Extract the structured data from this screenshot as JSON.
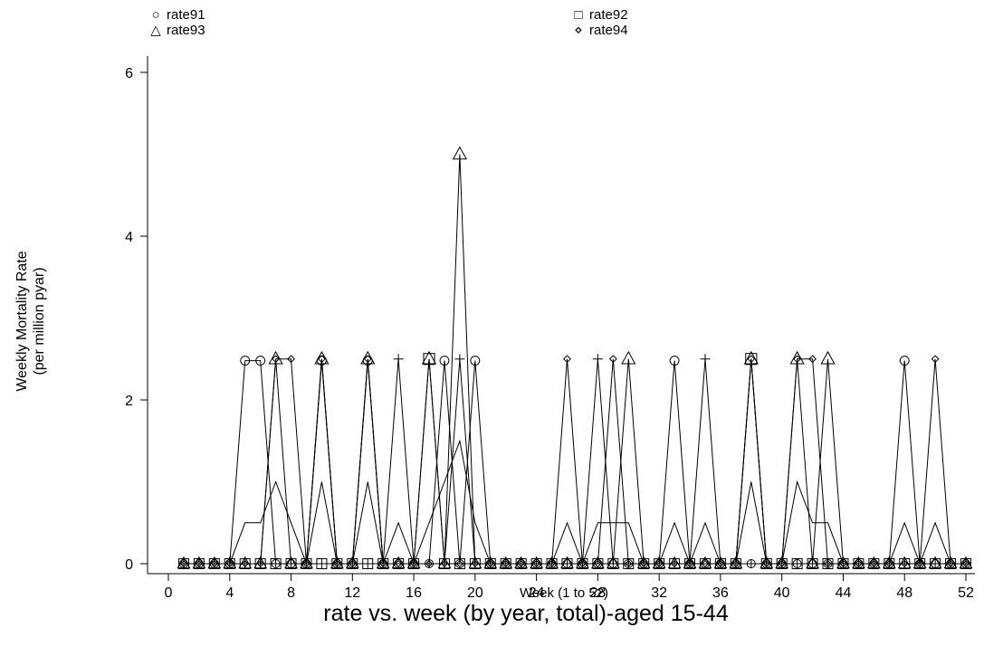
{
  "chart_data": {
    "type": "line",
    "title": "rate vs. week (by year, total)-aged 15-44",
    "xlabel": "Week (1 to 52)",
    "ylabel": [
      "Weekly Mortality Rate",
      "(per million pyar)"
    ],
    "xlim": [
      0,
      52
    ],
    "ylim": [
      0,
      6
    ],
    "x_ticks": [
      0,
      4,
      8,
      12,
      16,
      20,
      24,
      28,
      32,
      36,
      40,
      44,
      48,
      52
    ],
    "y_ticks": [
      0,
      2,
      4,
      6
    ],
    "legend_position": "top",
    "grid": false,
    "x": [
      1,
      2,
      3,
      4,
      5,
      6,
      7,
      8,
      9,
      10,
      11,
      12,
      13,
      14,
      15,
      16,
      17,
      18,
      19,
      20,
      21,
      22,
      23,
      24,
      25,
      26,
      27,
      28,
      29,
      30,
      31,
      32,
      33,
      34,
      35,
      36,
      37,
      38,
      39,
      40,
      41,
      42,
      43,
      44,
      45,
      46,
      47,
      48,
      49,
      50,
      51,
      52
    ],
    "series": [
      {
        "name": "rate91",
        "marker": "circle",
        "values": [
          0,
          0,
          0,
          0,
          2.48,
          2.48,
          0,
          0,
          0,
          2.48,
          0,
          0,
          2.48,
          0,
          0,
          0,
          0,
          2.48,
          0,
          2.48,
          0,
          0,
          0,
          0,
          0,
          0,
          0,
          0,
          0,
          0,
          0,
          0,
          2.48,
          0,
          0,
          0,
          0,
          0,
          0,
          0,
          0,
          0,
          0,
          0,
          0,
          0,
          0,
          2.48,
          0,
          0,
          0,
          0
        ]
      },
      {
        "name": "rate92",
        "marker": "square",
        "values": [
          0,
          0,
          0,
          0,
          0,
          0,
          0,
          0,
          0,
          0,
          0,
          0,
          0,
          0,
          0,
          0,
          2.5,
          0,
          0,
          0,
          0,
          0,
          0,
          0,
          0,
          0,
          0,
          0,
          0,
          0,
          0,
          0,
          0,
          0,
          0,
          0,
          0,
          2.5,
          0,
          0,
          0,
          0,
          0,
          0,
          0,
          0,
          0,
          0,
          0,
          0,
          0,
          0
        ]
      },
      {
        "name": "rate93",
        "marker": "triangle",
        "values": [
          0,
          0,
          0,
          0,
          0,
          0,
          2.5,
          0,
          0,
          2.5,
          0,
          0,
          2.5,
          0,
          0,
          0,
          2.5,
          0,
          5.0,
          0,
          0,
          0,
          0,
          0,
          0,
          0,
          0,
          0,
          0,
          2.5,
          0,
          0,
          0,
          0,
          0,
          0,
          0,
          2.5,
          0,
          0,
          2.5,
          0,
          2.5,
          0,
          0,
          0,
          0,
          0,
          0,
          0,
          0,
          0
        ]
      },
      {
        "name": "rate94",
        "marker": "diamond",
        "values": [
          0,
          0,
          0,
          0,
          0,
          0,
          2.5,
          2.5,
          0,
          2.5,
          0,
          0,
          2.5,
          0,
          0,
          0,
          0,
          0,
          0,
          0,
          0,
          0,
          0,
          0,
          0,
          2.5,
          0,
          0,
          2.5,
          0,
          0,
          0,
          0,
          0,
          0,
          0,
          0,
          2.5,
          0,
          0,
          2.5,
          2.5,
          0,
          0,
          0,
          0,
          0,
          0,
          0,
          2.5,
          0,
          0
        ]
      },
      {
        "name": "",
        "marker": "plus",
        "values": [
          0,
          0,
          0,
          0,
          0,
          0,
          0,
          0,
          0,
          0,
          0,
          0,
          0,
          0,
          2.5,
          0,
          0,
          0,
          2.5,
          0,
          0,
          0,
          0,
          0,
          0,
          0,
          0,
          2.5,
          0,
          0,
          0,
          0,
          0,
          0,
          2.5,
          0,
          0,
          0,
          0,
          0,
          0,
          0,
          0,
          0,
          0,
          0,
          0,
          0,
          0,
          0,
          0,
          0
        ]
      },
      {
        "name": "",
        "marker": "none",
        "values": [
          0,
          0,
          0,
          0,
          0.5,
          0.5,
          1.0,
          0.5,
          0,
          1.0,
          0,
          0,
          1.0,
          0,
          0.5,
          0,
          0.5,
          1.0,
          1.5,
          0.5,
          0,
          0,
          0,
          0,
          0,
          0.5,
          0,
          0.5,
          0.5,
          0.5,
          0,
          0,
          0.5,
          0,
          0.5,
          0,
          0,
          1.0,
          0,
          0,
          1.0,
          0.5,
          0.5,
          0,
          0,
          0,
          0,
          0.5,
          0,
          0.5,
          0,
          0
        ]
      }
    ]
  }
}
